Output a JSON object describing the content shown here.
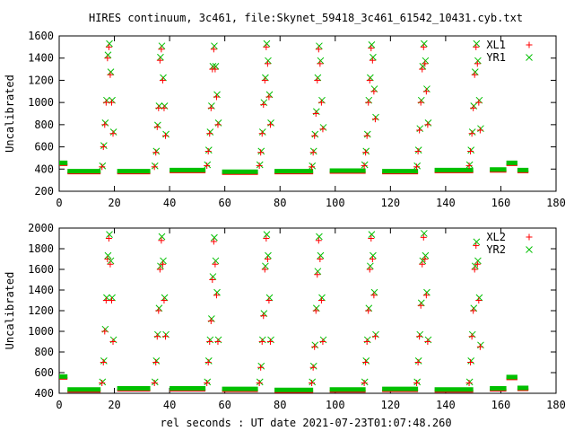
{
  "chart_data": {
    "title": "HIRES continuum, 3c461, file:Skynet_59418_3c461_61542_10431.cyb.txt",
    "xlabel": "rel seconds : UT date 2021-07-23T01:07:48.260",
    "colors": {
      "first_series": "#ff0000",
      "second_series": "#00c000",
      "frame": "#000000"
    },
    "panels": [
      {
        "type": "scatter",
        "ylabel": "Uncalibrated",
        "xlim": [
          0,
          180
        ],
        "ylim": [
          200,
          1600
        ],
        "xticks": [
          0,
          20,
          40,
          60,
          80,
          100,
          120,
          140,
          160,
          180
        ],
        "yticks": [
          200,
          400,
          600,
          800,
          1000,
          1200,
          1400,
          1600
        ],
        "legend_position": "top-right",
        "baseline_segments": [
          {
            "x0": 0,
            "x1": 3,
            "y": 440
          },
          {
            "x0": 3,
            "x1": 15,
            "y": 365
          },
          {
            "x0": 21,
            "x1": 33,
            "y": 365
          },
          {
            "x0": 40,
            "x1": 53,
            "y": 375
          },
          {
            "x0": 59,
            "x1": 72,
            "y": 360
          },
          {
            "x0": 78,
            "x1": 92,
            "y": 365
          },
          {
            "x0": 98,
            "x1": 111,
            "y": 370
          },
          {
            "x0": 117,
            "x1": 130,
            "y": 365
          },
          {
            "x0": 136,
            "x1": 150,
            "y": 375
          },
          {
            "x0": 156,
            "x1": 162,
            "y": 380
          },
          {
            "x0": 162,
            "x1": 166,
            "y": 440
          },
          {
            "x0": 166,
            "x1": 170,
            "y": 375
          }
        ],
        "spikes": [
          {
            "x": [
              15.5,
              16.0,
              16.5,
              17.0,
              17.5,
              18.0,
              18.5,
              19.0,
              19.5
            ],
            "y": [
              420,
              600,
              800,
              1000,
              1400,
              1500,
              1250,
              1000,
              720
            ]
          },
          {
            "x": [
              34.5,
              35.0,
              35.5,
              36.0,
              36.5,
              37.0,
              37.5,
              38.0,
              38.5
            ],
            "y": [
              420,
              550,
              780,
              950,
              1380,
              1480,
              1200,
              950,
              700
            ]
          },
          {
            "x": [
              53.5,
              54.0,
              54.5,
              55.0,
              55.5,
              56.0,
              56.5,
              57.0,
              57.5
            ],
            "y": [
              430,
              560,
              720,
              950,
              1300,
              1480,
              1300,
              1050,
              800
            ]
          },
          {
            "x": [
              72.5,
              73.0,
              73.5,
              74.0,
              74.5,
              75.0,
              75.5,
              76.0,
              76.5
            ],
            "y": [
              430,
              550,
              720,
              980,
              1200,
              1500,
              1350,
              1050,
              800
            ]
          },
          {
            "x": [
              91.5,
              92.0,
              92.5,
              93.0,
              93.5,
              94.0,
              94.5,
              95.0,
              95.5
            ],
            "y": [
              420,
              550,
              700,
              900,
              1200,
              1480,
              1350,
              1000,
              760
            ]
          },
          {
            "x": [
              110.5,
              111.0,
              111.5,
              112.0,
              112.5,
              113.0,
              113.5,
              114.0,
              114.5
            ],
            "y": [
              430,
              550,
              700,
              1000,
              1200,
              1490,
              1380,
              1100,
              850
            ]
          },
          {
            "x": [
              129.5,
              130.0,
              130.5,
              131.0,
              131.5,
              132.0,
              132.5,
              133.0,
              133.5
            ],
            "y": [
              420,
              560,
              750,
              1000,
              1300,
              1500,
              1350,
              1100,
              800
            ]
          },
          {
            "x": [
              148.5,
              149.0,
              149.5,
              150.0,
              150.5,
              151.0,
              151.5,
              152.0,
              152.5
            ],
            "y": [
              430,
              560,
              720,
              950,
              1250,
              1500,
              1350,
              1000,
              750
            ]
          }
        ],
        "series": [
          {
            "name": "XL1",
            "marker": "plus",
            "color": "#ff0000"
          },
          {
            "name": "YR1",
            "marker": "cross",
            "color": "#00c000"
          }
        ]
      },
      {
        "type": "scatter",
        "ylabel": "Uncalibrated",
        "xlim": [
          0,
          180
        ],
        "ylim": [
          400,
          2000
        ],
        "xticks": [
          0,
          20,
          40,
          60,
          80,
          100,
          120,
          140,
          160,
          180
        ],
        "yticks": [
          400,
          600,
          800,
          1000,
          1200,
          1400,
          1600,
          1800,
          2000
        ],
        "legend_position": "top-right",
        "baseline_segments": [
          {
            "x0": 0,
            "x1": 3,
            "y": 545
          },
          {
            "x0": 3,
            "x1": 15,
            "y": 420
          },
          {
            "x0": 21,
            "x1": 33,
            "y": 430
          },
          {
            "x0": 40,
            "x1": 53,
            "y": 430
          },
          {
            "x0": 59,
            "x1": 72,
            "y": 425
          },
          {
            "x0": 78,
            "x1": 92,
            "y": 415
          },
          {
            "x0": 98,
            "x1": 111,
            "y": 420
          },
          {
            "x0": 117,
            "x1": 130,
            "y": 425
          },
          {
            "x0": 136,
            "x1": 150,
            "y": 420
          },
          {
            "x0": 156,
            "x1": 162,
            "y": 430
          },
          {
            "x0": 162,
            "x1": 166,
            "y": 540
          },
          {
            "x0": 166,
            "x1": 170,
            "y": 435
          }
        ],
        "spikes": [
          {
            "x": [
              15.5,
              16.0,
              16.5,
              17.0,
              17.5,
              18.0,
              18.5,
              19.0,
              19.5
            ],
            "y": [
              500,
              700,
              1000,
              1300,
              1700,
              1900,
              1650,
              1300,
              900
            ]
          },
          {
            "x": [
              34.5,
              35.0,
              35.5,
              36.0,
              36.5,
              37.0,
              37.5,
              38.0,
              38.5
            ],
            "y": [
              500,
              700,
              950,
              1200,
              1600,
              1880,
              1650,
              1300,
              950
            ]
          },
          {
            "x": [
              53.5,
              54.0,
              54.5,
              55.0,
              55.5,
              56.0,
              56.5,
              57.0,
              57.5
            ],
            "y": [
              500,
              700,
              900,
              1100,
              1500,
              1870,
              1650,
              1350,
              900
            ]
          },
          {
            "x": [
              72.5,
              73.0,
              73.5,
              74.0,
              74.5,
              75.0,
              75.5,
              76.0,
              76.5
            ],
            "y": [
              500,
              650,
              900,
              1150,
              1600,
              1900,
              1700,
              1300,
              900
            ]
          },
          {
            "x": [
              91.5,
              92.0,
              92.5,
              93.0,
              93.5,
              94.0,
              94.5,
              95.0,
              95.5
            ],
            "y": [
              500,
              650,
              850,
              1200,
              1550,
              1880,
              1700,
              1300,
              900
            ]
          },
          {
            "x": [
              110.5,
              111.0,
              111.5,
              112.0,
              112.5,
              113.0,
              113.5,
              114.0,
              114.5
            ],
            "y": [
              500,
              700,
              900,
              1200,
              1600,
              1900,
              1700,
              1350,
              950
            ]
          },
          {
            "x": [
              129.5,
              130.0,
              130.5,
              131.0,
              131.5,
              132.0,
              132.5,
              133.0,
              133.5
            ],
            "y": [
              500,
              700,
              950,
              1250,
              1650,
              1910,
              1700,
              1350,
              900
            ]
          },
          {
            "x": [
              148.5,
              149.0,
              149.5,
              150.0,
              150.5,
              151.0,
              151.5,
              152.0,
              152.5
            ],
            "y": [
              500,
              700,
              950,
              1200,
              1600,
              1830,
              1650,
              1300,
              850
            ]
          }
        ],
        "series": [
          {
            "name": "XL2",
            "marker": "plus",
            "color": "#ff0000"
          },
          {
            "name": "YR2",
            "marker": "cross",
            "color": "#00c000"
          }
        ]
      }
    ]
  }
}
